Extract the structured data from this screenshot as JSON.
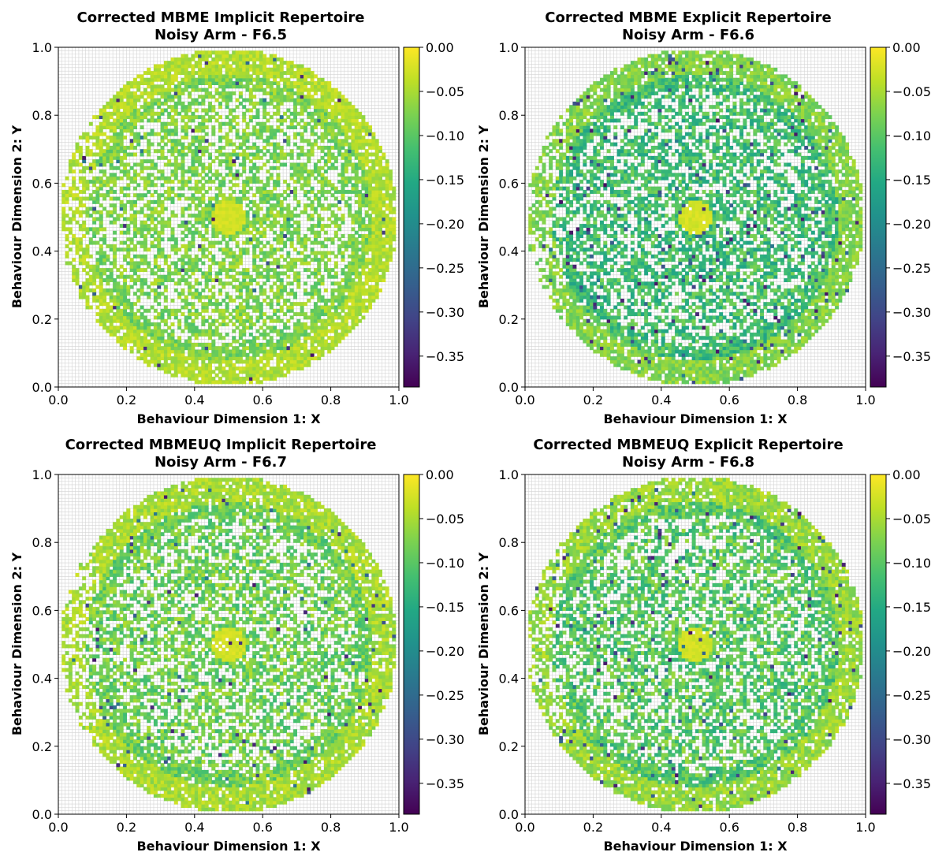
{
  "chart_data": [
    {
      "type": "heatmap",
      "title": "Corrected MBME Implicit Repertoire",
      "subtitle": "Noisy Arm - F6.5",
      "xlabel": "Behaviour Dimension 1: X",
      "ylabel": "Behaviour Dimension 2: Y",
      "xlim": [
        0.0,
        1.0
      ],
      "ylim": [
        0.0,
        1.0
      ],
      "xticks": [
        "0.0",
        "0.2",
        "0.4",
        "0.6",
        "0.8",
        "1.0"
      ],
      "yticks": [
        "0.0",
        "0.2",
        "0.4",
        "0.6",
        "0.8",
        "1.0"
      ],
      "grid": true,
      "colormap": "viridis",
      "colorbar": {
        "range": [
          -0.385,
          0.0
        ],
        "ticks": [
          0.0,
          -0.05,
          -0.1,
          -0.15,
          -0.2,
          -0.25,
          -0.3,
          -0.35
        ],
        "ticklabels": [
          "0.00",
          "−0.05",
          "−0.10",
          "−0.15",
          "−0.20",
          "−0.25",
          "−0.30",
          "−0.35"
        ]
      },
      "seed": 11,
      "profile": {
        "typical": -0.075,
        "spread": 0.035,
        "outlier_rate": 0.012
      }
    },
    {
      "type": "heatmap",
      "title": "Corrected MBME Explicit Repertoire",
      "subtitle": "Noisy Arm - F6.6",
      "xlabel": "Behaviour Dimension 1: X",
      "ylabel": "Behaviour Dimension 2: Y",
      "xlim": [
        0.0,
        1.0
      ],
      "ylim": [
        0.0,
        1.0
      ],
      "xticks": [
        "0.0",
        "0.2",
        "0.4",
        "0.6",
        "0.8",
        "1.0"
      ],
      "yticks": [
        "0.0",
        "0.2",
        "0.4",
        "0.6",
        "0.8",
        "1.0"
      ],
      "grid": true,
      "colormap": "viridis",
      "colorbar": {
        "range": [
          -0.385,
          0.0
        ],
        "ticks": [
          0.0,
          -0.05,
          -0.1,
          -0.15,
          -0.2,
          -0.25,
          -0.3,
          -0.35
        ],
        "ticklabels": [
          "0.00",
          "−0.05",
          "−0.10",
          "−0.15",
          "−0.20",
          "−0.25",
          "−0.30",
          "−0.35"
        ]
      },
      "seed": 23,
      "profile": {
        "typical": -0.12,
        "spread": 0.045,
        "outlier_rate": 0.04
      }
    },
    {
      "type": "heatmap",
      "title": "Corrected MBMEUQ Implicit Repertoire",
      "subtitle": "Noisy Arm - F6.7",
      "xlabel": "Behaviour Dimension 1: X",
      "ylabel": "Behaviour Dimension 2: Y",
      "xlim": [
        0.0,
        1.0
      ],
      "ylim": [
        0.0,
        1.0
      ],
      "xticks": [
        "0.0",
        "0.2",
        "0.4",
        "0.6",
        "0.8",
        "1.0"
      ],
      "yticks": [
        "0.0",
        "0.2",
        "0.4",
        "0.6",
        "0.8",
        "1.0"
      ],
      "grid": true,
      "colormap": "viridis",
      "colorbar": {
        "range": [
          -0.385,
          0.0
        ],
        "ticks": [
          0.0,
          -0.05,
          -0.1,
          -0.15,
          -0.2,
          -0.25,
          -0.3,
          -0.35
        ],
        "ticklabels": [
          "0.00",
          "−0.05",
          "−0.10",
          "−0.15",
          "−0.20",
          "−0.25",
          "−0.30",
          "−0.35"
        ]
      },
      "seed": 37,
      "profile": {
        "typical": -0.085,
        "spread": 0.04,
        "outlier_rate": 0.02
      }
    },
    {
      "type": "heatmap",
      "title": "Corrected MBMEUQ Explicit Repertoire",
      "subtitle": "Noisy Arm - F6.8",
      "xlabel": "Behaviour Dimension 1: X",
      "ylabel": "Behaviour Dimension 2: Y",
      "xlim": [
        0.0,
        1.0
      ],
      "ylim": [
        0.0,
        1.0
      ],
      "xticks": [
        "0.0",
        "0.2",
        "0.4",
        "0.6",
        "0.8",
        "1.0"
      ],
      "yticks": [
        "0.0",
        "0.2",
        "0.4",
        "0.6",
        "0.8",
        "1.0"
      ],
      "grid": true,
      "colormap": "viridis",
      "colorbar": {
        "range": [
          -0.385,
          0.0
        ],
        "ticks": [
          0.0,
          -0.05,
          -0.1,
          -0.15,
          -0.2,
          -0.25,
          -0.3,
          -0.35
        ],
        "ticklabels": [
          "0.00",
          "−0.05",
          "−0.10",
          "−0.15",
          "−0.20",
          "−0.25",
          "−0.30",
          "−0.35"
        ]
      },
      "seed": 53,
      "profile": {
        "typical": -0.1,
        "spread": 0.045,
        "outlier_rate": 0.03
      }
    }
  ]
}
